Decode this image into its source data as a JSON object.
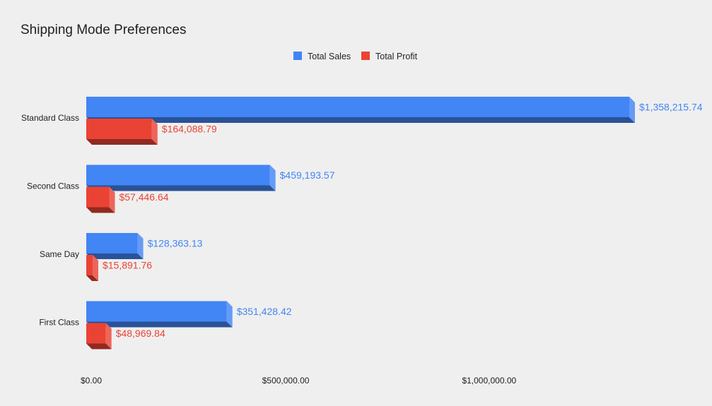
{
  "chart_data": {
    "type": "bar",
    "orientation": "horizontal",
    "style": "3d",
    "title": "Shipping Mode Preferences",
    "legend_position": "top",
    "categories": [
      "Standard Class",
      "Second Class",
      "Same Day",
      "First Class"
    ],
    "series": [
      {
        "name": "Total Sales",
        "color": "#4285f4",
        "values": [
          1358215.74,
          459193.57,
          128363.13,
          351428.42
        ],
        "labels": [
          "$1,358,215.74",
          "$459,193.57",
          "$128,363.13",
          "$351,428.42"
        ]
      },
      {
        "name": "Total Profit",
        "color": "#ea4335",
        "values": [
          164088.79,
          57446.64,
          15891.76,
          48969.84
        ],
        "labels": [
          "$164,088.79",
          "$57,446.64",
          "$15,891.76",
          "$48,969.84"
        ]
      }
    ],
    "x_ticks": [
      {
        "value": 0,
        "label": "$0.00"
      },
      {
        "value": 500000,
        "label": "$500,000.00"
      },
      {
        "value": 1000000,
        "label": "$1,000,000.00"
      }
    ],
    "xlim": [
      0,
      1358215.74
    ],
    "grid": false
  }
}
